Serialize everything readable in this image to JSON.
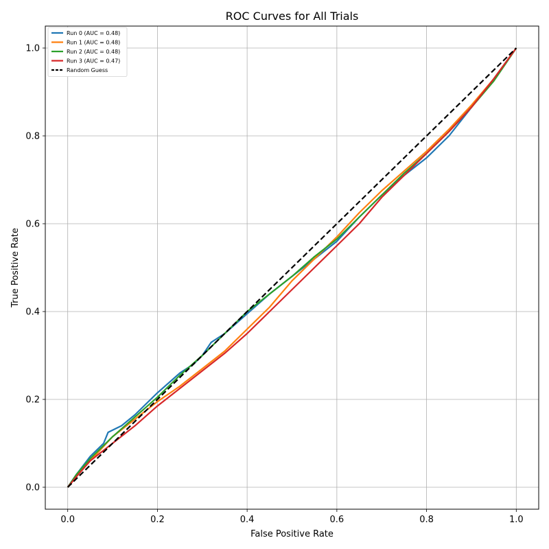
{
  "chart_data": {
    "type": "line",
    "title": "ROC Curves for All Trials",
    "xlabel": "False Positive Rate",
    "ylabel": "True Positive Rate",
    "xlim": [
      -0.05,
      1.05
    ],
    "ylim": [
      -0.05,
      1.05
    ],
    "xticks": [
      "0.0",
      "0.2",
      "0.4",
      "0.6",
      "0.8",
      "1.0"
    ],
    "yticks": [
      "0.0",
      "0.2",
      "0.4",
      "0.6",
      "0.8",
      "1.0"
    ],
    "grid": true,
    "legend_position": "top-left",
    "series": [
      {
        "name": "Run 0 (AUC = 0.48)",
        "color": "#1f77b4",
        "x": [
          0,
          0.02,
          0.05,
          0.08,
          0.09,
          0.12,
          0.15,
          0.2,
          0.25,
          0.28,
          0.3,
          0.32,
          0.35,
          0.4,
          0.45,
          0.5,
          0.55,
          0.6,
          0.65,
          0.7,
          0.75,
          0.8,
          0.85,
          0.9,
          0.95,
          1.0
        ],
        "y": [
          0,
          0.03,
          0.07,
          0.1,
          0.125,
          0.14,
          0.165,
          0.215,
          0.26,
          0.28,
          0.3,
          0.33,
          0.35,
          0.395,
          0.44,
          0.48,
          0.52,
          0.56,
          0.615,
          0.665,
          0.71,
          0.75,
          0.8,
          0.865,
          0.93,
          1.0
        ]
      },
      {
        "name": "Run 1 (AUC = 0.48)",
        "color": "#ff7f0e",
        "x": [
          0,
          0.02,
          0.05,
          0.1,
          0.15,
          0.2,
          0.25,
          0.3,
          0.35,
          0.4,
          0.45,
          0.5,
          0.55,
          0.6,
          0.65,
          0.7,
          0.75,
          0.8,
          0.85,
          0.9,
          0.95,
          1.0
        ],
        "y": [
          0,
          0.025,
          0.06,
          0.115,
          0.155,
          0.195,
          0.23,
          0.27,
          0.31,
          0.36,
          0.41,
          0.47,
          0.52,
          0.57,
          0.625,
          0.675,
          0.72,
          0.765,
          0.815,
          0.87,
          0.93,
          1.0
        ]
      },
      {
        "name": "Run 2 (AUC = 0.48)",
        "color": "#2ca02c",
        "x": [
          0,
          0.02,
          0.05,
          0.1,
          0.15,
          0.2,
          0.25,
          0.3,
          0.35,
          0.4,
          0.45,
          0.5,
          0.55,
          0.6,
          0.65,
          0.7,
          0.75,
          0.8,
          0.85,
          0.9,
          0.95,
          1.0
        ],
        "y": [
          0,
          0.03,
          0.065,
          0.115,
          0.16,
          0.205,
          0.255,
          0.3,
          0.35,
          0.4,
          0.44,
          0.48,
          0.525,
          0.565,
          0.615,
          0.665,
          0.715,
          0.76,
          0.81,
          0.865,
          0.925,
          1.0
        ]
      },
      {
        "name": "Run 3 (AUC = 0.47)",
        "color": "#d62728",
        "x": [
          0,
          0.02,
          0.05,
          0.1,
          0.15,
          0.2,
          0.25,
          0.3,
          0.35,
          0.4,
          0.45,
          0.5,
          0.55,
          0.6,
          0.65,
          0.7,
          0.75,
          0.8,
          0.85,
          0.9,
          0.95,
          1.0
        ],
        "y": [
          0,
          0.025,
          0.06,
          0.1,
          0.14,
          0.185,
          0.225,
          0.265,
          0.305,
          0.35,
          0.4,
          0.45,
          0.5,
          0.55,
          0.6,
          0.66,
          0.71,
          0.76,
          0.81,
          0.865,
          0.93,
          1.0
        ]
      },
      {
        "name": "Random Guess",
        "color": "#000000",
        "dashed": true,
        "x": [
          0,
          1
        ],
        "y": [
          0,
          1
        ]
      }
    ]
  }
}
